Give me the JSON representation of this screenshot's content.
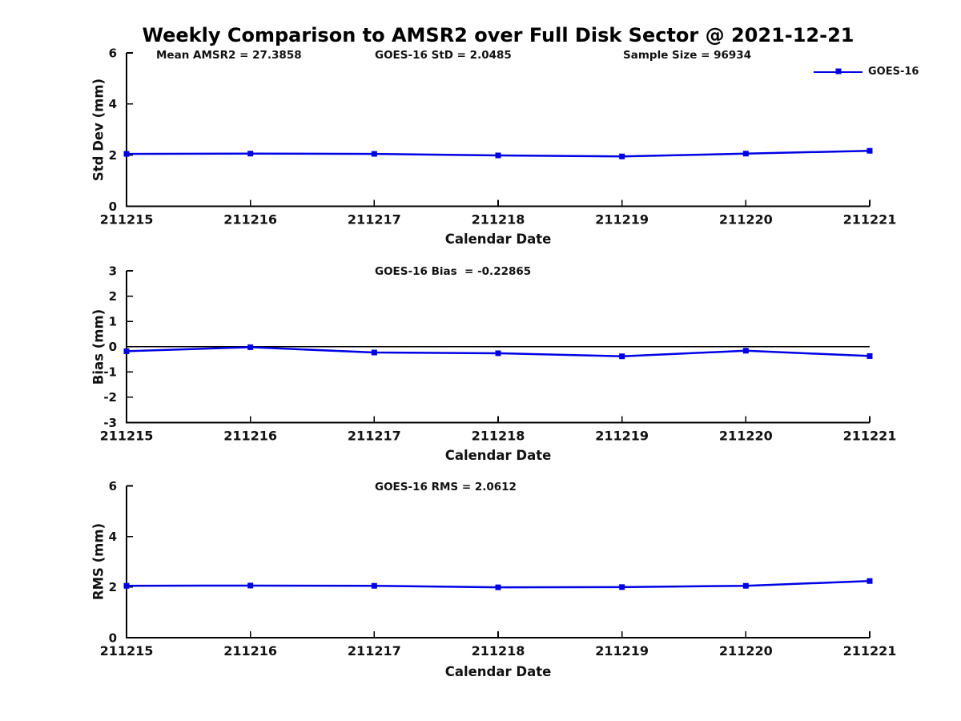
{
  "title": "Weekly Comparison to AMSR2 over Full Disk Sector @ 2021-12-21",
  "colors": {
    "line": "#0000e6",
    "axis": "#000000",
    "text": "#111111"
  },
  "legend": {
    "label": "GOES-16",
    "position": "top-right"
  },
  "chart_data": [
    {
      "type": "line",
      "ylabel": "Std Dev (mm)",
      "xlabel": "Calendar Date",
      "annotations": [
        "Mean AMSR2 = 27.3858",
        "GOES-16 StD = 2.0485",
        "Sample Size = 96934"
      ],
      "categories": [
        "211215",
        "211216",
        "211217",
        "211218",
        "211219",
        "211220",
        "211221"
      ],
      "series": [
        {
          "name": "GOES-16",
          "values": [
            2.05,
            2.06,
            2.05,
            1.99,
            1.95,
            2.06,
            2.17
          ]
        }
      ],
      "ylim": [
        0,
        6
      ],
      "yticks": [
        0,
        2,
        4,
        6
      ],
      "zero_line": false,
      "grid": false,
      "legend_entries": [
        "GOES-16"
      ]
    },
    {
      "type": "line",
      "ylabel": "Bias (mm)",
      "xlabel": "Calendar Date",
      "annotations": [
        "GOES-16 Bias  = -0.22865"
      ],
      "categories": [
        "211215",
        "211216",
        "211217",
        "211218",
        "211219",
        "211220",
        "211221"
      ],
      "series": [
        {
          "name": "GOES-16",
          "values": [
            -0.18,
            -0.02,
            -0.23,
            -0.26,
            -0.38,
            -0.16,
            -0.37
          ]
        }
      ],
      "ylim": [
        -3,
        3
      ],
      "yticks": [
        -3,
        -2,
        -1,
        0,
        1,
        2,
        3
      ],
      "zero_line": true,
      "grid": false,
      "legend_entries": []
    },
    {
      "type": "line",
      "ylabel": "RMS (mm)",
      "xlabel": "Calendar Date",
      "annotations": [
        "GOES-16 RMS = 2.0612"
      ],
      "categories": [
        "211215",
        "211216",
        "211217",
        "211218",
        "211219",
        "211220",
        "211221"
      ],
      "series": [
        {
          "name": "GOES-16",
          "values": [
            2.05,
            2.06,
            2.05,
            1.99,
            2.0,
            2.05,
            2.24
          ]
        }
      ],
      "ylim": [
        0,
        6
      ],
      "yticks": [
        0,
        2,
        4,
        6
      ],
      "zero_line": false,
      "grid": false,
      "legend_entries": []
    }
  ]
}
